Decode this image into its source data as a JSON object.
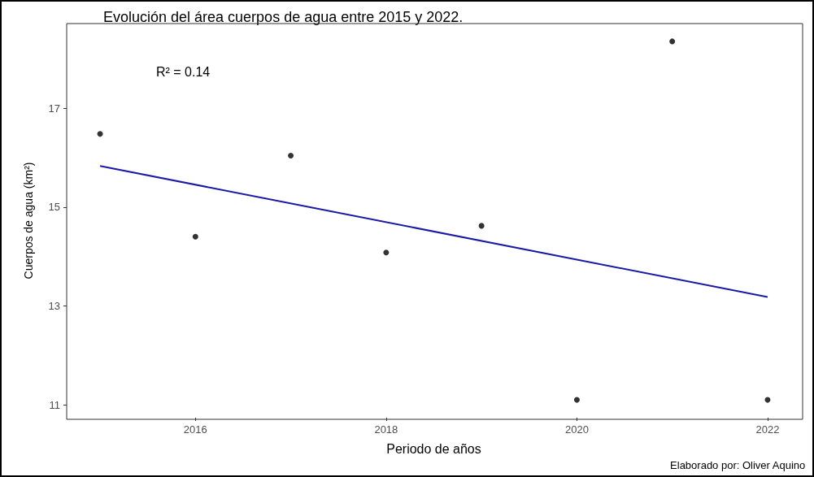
{
  "chart_data": {
    "type": "scatter",
    "title": "Evolución del área cuerpos de agua entre 2015 y 2022.",
    "xlabel": "Periodo de años",
    "ylabel": "Cuerpos de agua (km²)",
    "annotations": [
      "R² = 0.14",
      "Elaborado por: Oliver Aquino"
    ],
    "series": [
      {
        "color": "#000000",
        "marker": "circle",
        "x": [
          2015,
          2016,
          2017,
          2018,
          2019,
          2020,
          2021,
          2022
        ],
        "values": [
          16.48,
          14.4,
          16.04,
          14.08,
          14.62,
          11.1,
          18.35,
          11.1
        ]
      },
      {
        "type": "line",
        "color": "#1a1aa6",
        "marker": "none",
        "line_style": "solid",
        "x": [
          2015,
          2022
        ],
        "values": [
          15.83,
          13.18
        ]
      }
    ],
    "xlim": [
      2014.65,
      2022.35
    ],
    "xticks": [
      2016,
      2018,
      2020,
      2022
    ],
    "ylim": [
      10.74,
      18.71
    ],
    "yticks": [
      11,
      13,
      15,
      17
    ],
    "grid": false
  }
}
